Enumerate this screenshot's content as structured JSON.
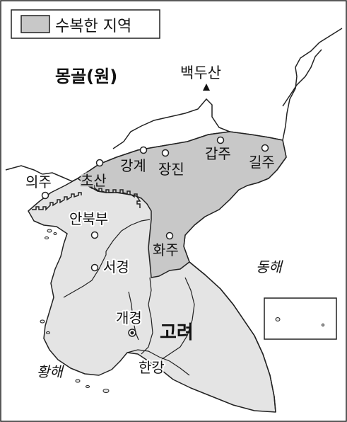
{
  "legend": {
    "label": "수복한 지역"
  },
  "regions": {
    "mongol": "몽골(원)",
    "goryeo": "고려"
  },
  "seas": {
    "east": "동해",
    "yellow": "황해"
  },
  "mountain": "백두산",
  "places": {
    "uiju": "의주",
    "chosan": "초산",
    "ganggye": "강계",
    "jangjin": "장진",
    "gapju": "갑주",
    "gilju": "길주",
    "anbukbu": "안북부",
    "hwaju": "화주",
    "seogyeong": "서경",
    "gaegyeong": "개경",
    "hangang": "한강"
  },
  "colors": {
    "recovered": "#c8c8c8",
    "goryeo_land": "#e4e4e4",
    "foreign_land": "#ffffff",
    "outline": "#222222"
  }
}
